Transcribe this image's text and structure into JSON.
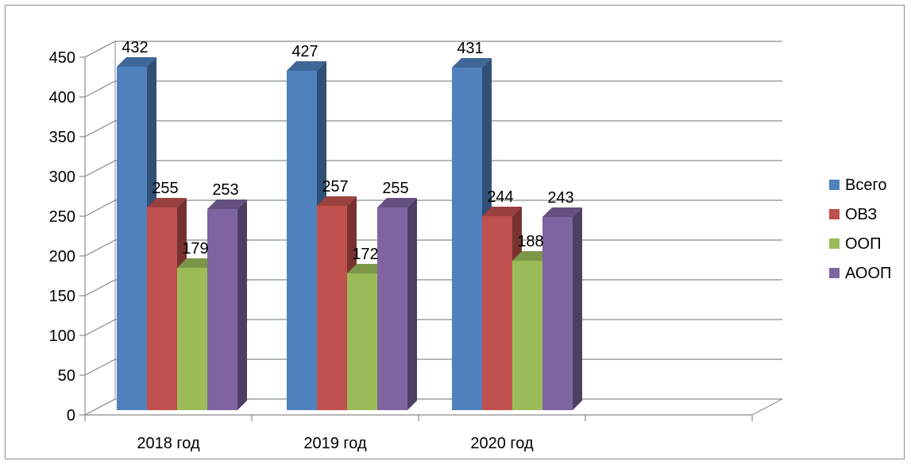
{
  "chart_data": {
    "type": "bar",
    "style": "3d-clustered-column",
    "categories": [
      "2018 год",
      "2019 год",
      "2020 год"
    ],
    "series": [
      {
        "name": "Всего",
        "values": [
          432,
          427,
          431
        ],
        "color": "#4f81bd"
      },
      {
        "name": "ОВЗ",
        "values": [
          255,
          257,
          244
        ],
        "color": "#c0504d"
      },
      {
        "name": "ООП",
        "values": [
          179,
          172,
          188
        ],
        "color": "#9bbb59"
      },
      {
        "name": "АООП",
        "values": [
          253,
          255,
          243
        ],
        "color": "#8064a2"
      }
    ],
    "yticks": [
      0,
      50,
      100,
      150,
      200,
      250,
      300,
      350,
      400,
      450
    ],
    "ylim": [
      0,
      450
    ],
    "grid": true,
    "legend": "right",
    "data_labels": true
  }
}
